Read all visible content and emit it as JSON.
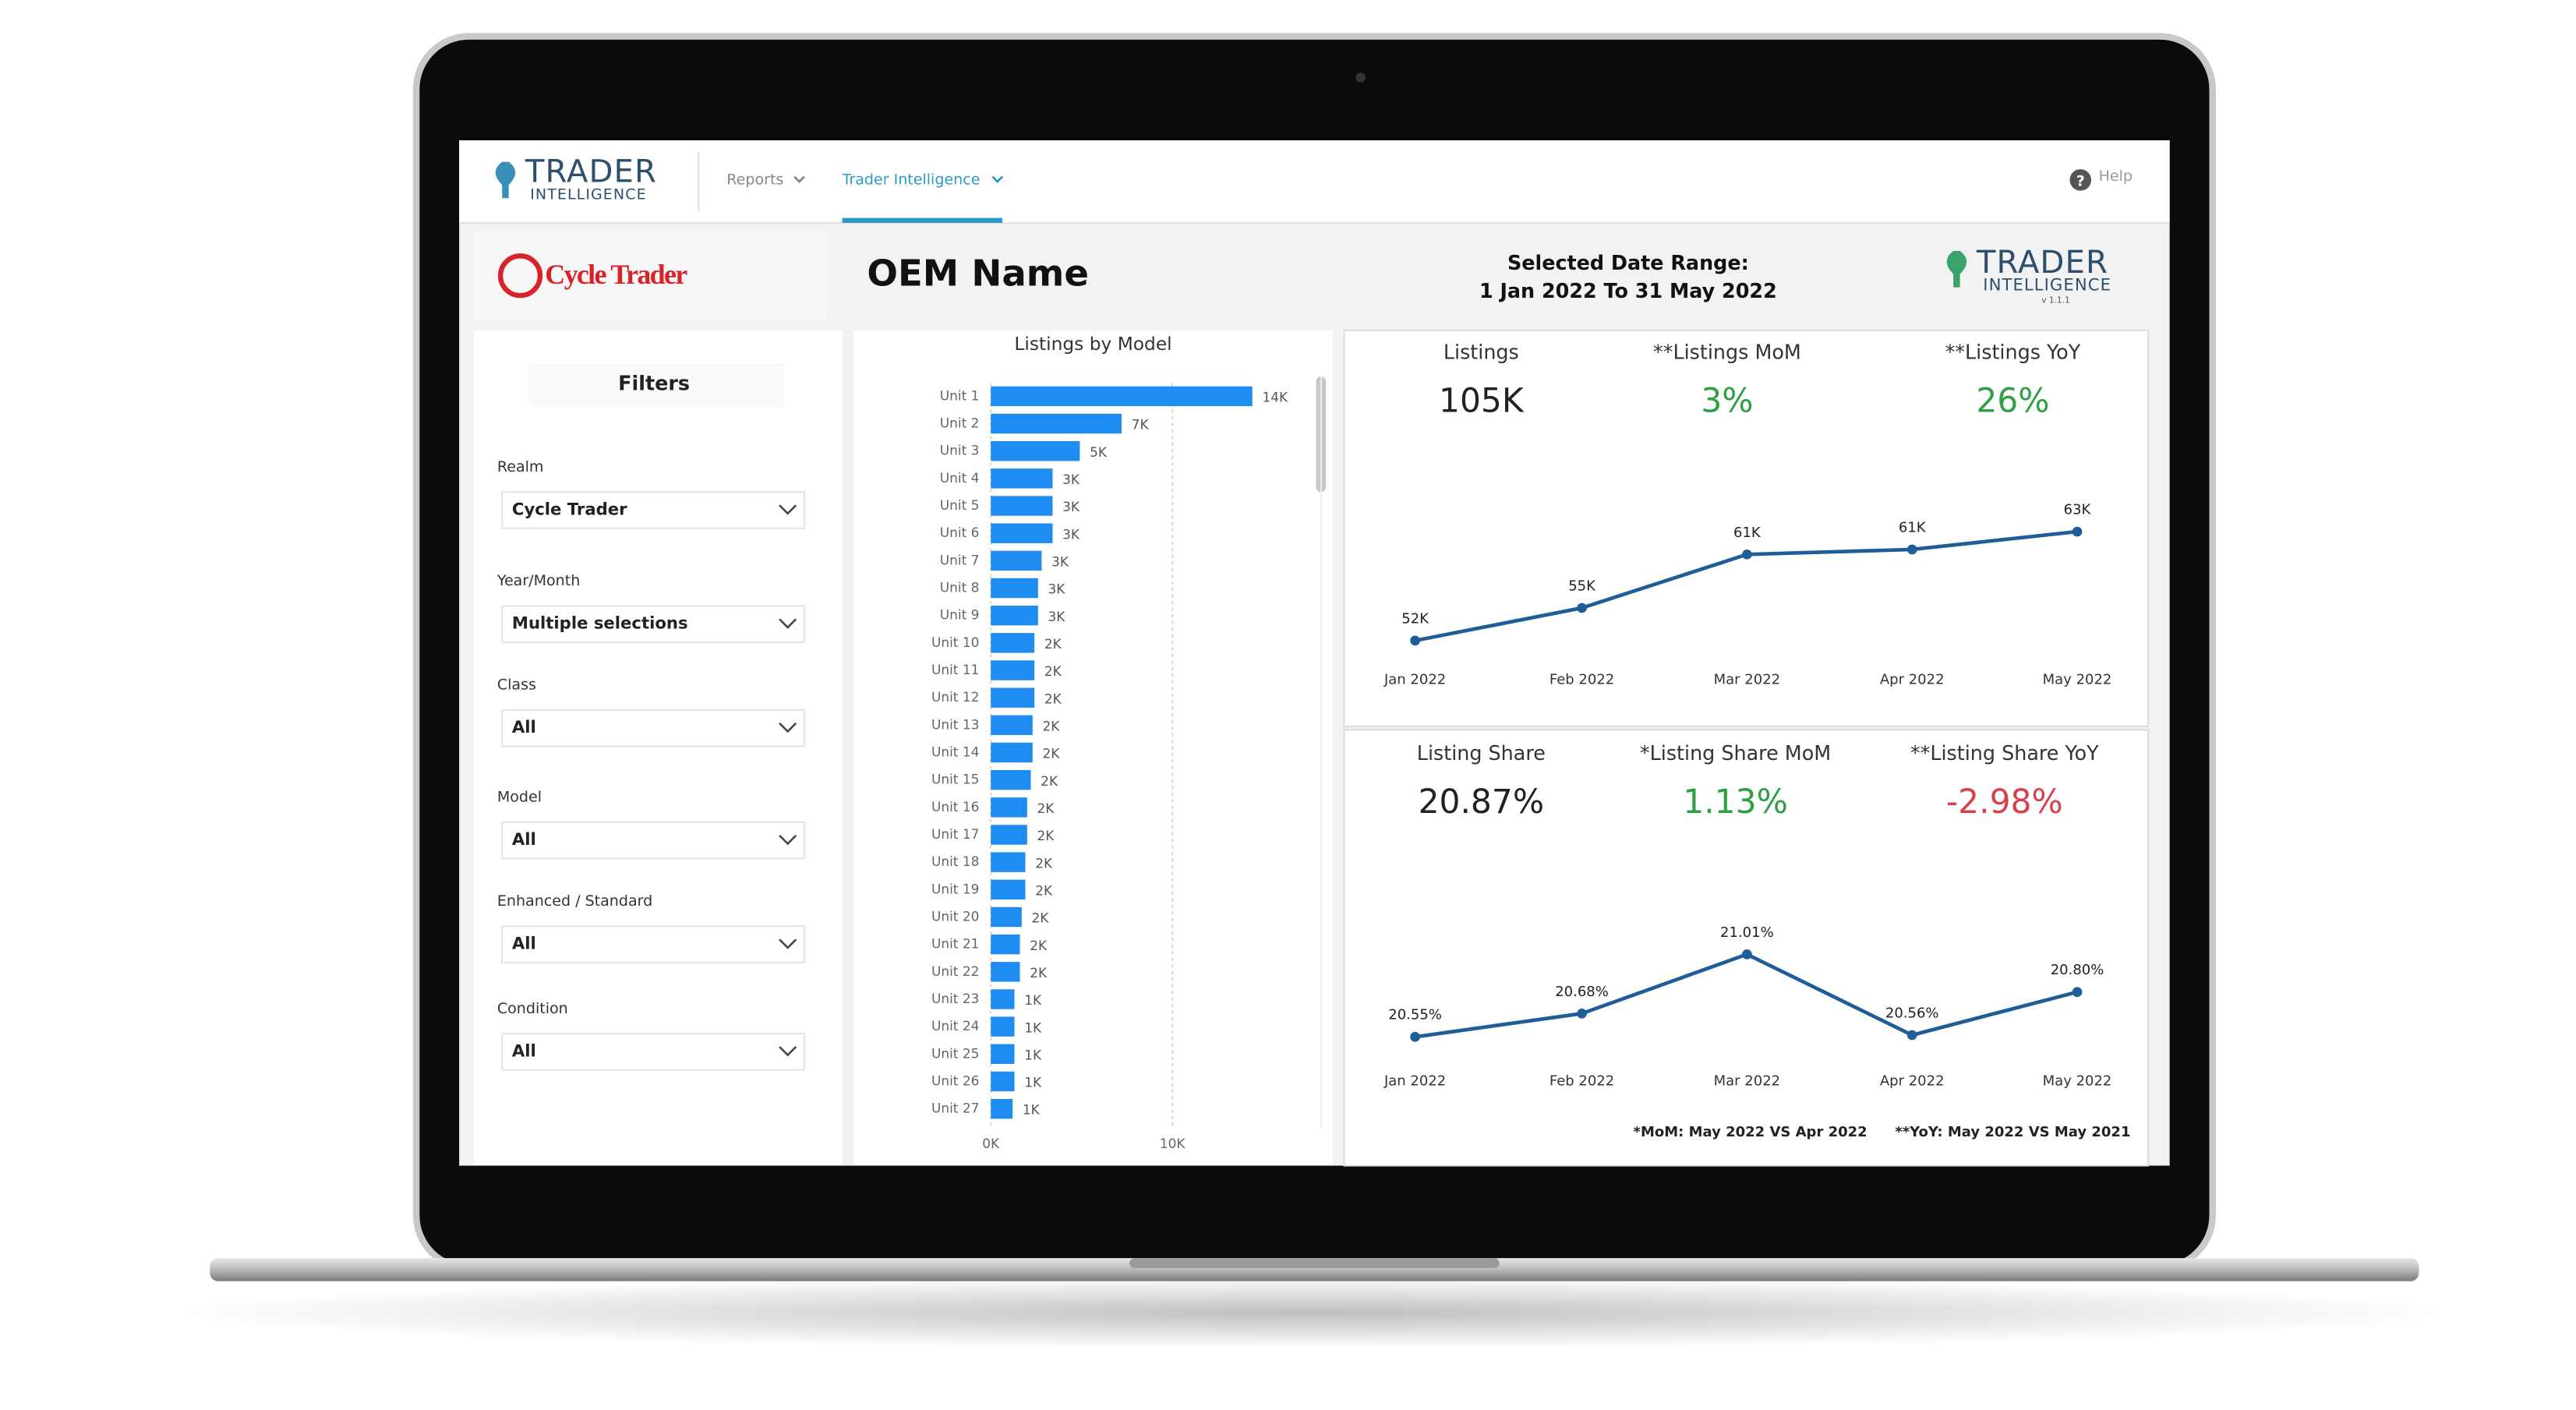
{
  "nav": {
    "logo_line1": "TRADER",
    "logo_line2": "INTELLIGENCE",
    "items": [
      "Reports",
      "Trader Intelligence"
    ],
    "help": "Help"
  },
  "header": {
    "brand": "Cycle Trader",
    "title": "OEM Name",
    "date_label": "Selected Date Range:",
    "date_value": "1 Jan 2022 To 31 May 2022",
    "logo_line1": "TRADER",
    "logo_line2": "INTELLIGENCE",
    "version": "v 1.1.1"
  },
  "filters": {
    "title": "Filters",
    "items": [
      {
        "label": "Realm",
        "value": "Cycle Trader"
      },
      {
        "label": "Year/Month",
        "value": "Multiple selections"
      },
      {
        "label": "Class",
        "value": "All"
      },
      {
        "label": "Model",
        "value": "All"
      },
      {
        "label": "Enhanced / Standard",
        "value": "All"
      },
      {
        "label": "Condition",
        "value": "All"
      }
    ]
  },
  "listings_by_model": {
    "type": "bar",
    "orientation": "horizontal",
    "title": "Listings by Model",
    "color": "#1e8cf0",
    "categories": [
      "Unit 1",
      "Unit 2",
      "Unit 3",
      "Unit 4",
      "Unit 5",
      "Unit 6",
      "Unit 7",
      "Unit 8",
      "Unit 9",
      "Unit 10",
      "Unit 11",
      "Unit 12",
      "Unit 13",
      "Unit 14",
      "Unit 15",
      "Unit 16",
      "Unit 17",
      "Unit 18",
      "Unit 19",
      "Unit 20",
      "Unit 21",
      "Unit 22",
      "Unit 23",
      "Unit 24",
      "Unit 25",
      "Unit 26",
      "Unit 27"
    ],
    "values": [
      14400,
      7200,
      4900,
      3400,
      3400,
      3400,
      2800,
      2600,
      2600,
      2400,
      2400,
      2400,
      2300,
      2300,
      2200,
      2000,
      2000,
      1900,
      1900,
      1700,
      1600,
      1600,
      1300,
      1300,
      1300,
      1300,
      1200
    ],
    "value_labels": [
      "14K",
      "7K",
      "5K",
      "3K",
      "3K",
      "3K",
      "3K",
      "3K",
      "3K",
      "2K",
      "2K",
      "2K",
      "2K",
      "2K",
      "2K",
      "2K",
      "2K",
      "2K",
      "2K",
      "2K",
      "2K",
      "2K",
      "1K",
      "1K",
      "1K",
      "1K",
      "1K"
    ],
    "xlim": [
      0,
      18000
    ],
    "xticks": [
      {
        "value": 0,
        "label": "0K"
      },
      {
        "value": 10000,
        "label": "10K"
      }
    ],
    "grid": true
  },
  "listings_panel": {
    "kpis": [
      {
        "label": "Listings",
        "value": "105K",
        "color": "#222222"
      },
      {
        "label": "**Listings MoM",
        "value": "3%",
        "color": "#2ea043"
      },
      {
        "label": "**Listings YoY",
        "value": "26%",
        "color": "#2ea043"
      }
    ],
    "chart": {
      "type": "line",
      "color": "#1f5d99",
      "x": [
        "Jan 2022",
        "Feb 2022",
        "Mar 2022",
        "Apr 2022",
        "May 2022"
      ],
      "values": [
        52000,
        55300,
        60700,
        61200,
        63000
      ],
      "value_labels": [
        "52K",
        "55K",
        "61K",
        "61K",
        "63K"
      ]
    }
  },
  "share_panel": {
    "kpis": [
      {
        "label": "Listing Share",
        "value": "20.87%",
        "color": "#222222"
      },
      {
        "label": "*Listing Share MoM",
        "value": "1.13%",
        "color": "#2ea043"
      },
      {
        "label": "**Listing Share YoY",
        "value": "-2.98%",
        "color": "#d8404c"
      }
    ],
    "chart": {
      "type": "line",
      "color": "#1f5d99",
      "x": [
        "Jan 2022",
        "Feb 2022",
        "Mar 2022",
        "Apr 2022",
        "May 2022"
      ],
      "values": [
        20.55,
        20.68,
        21.01,
        20.56,
        20.8
      ],
      "value_labels": [
        "20.55%",
        "20.68%",
        "21.01%",
        "20.56%",
        "20.80%"
      ]
    },
    "footnotes": [
      "*MoM: May 2022 VS Apr 2022",
      "**YoY: May 2022 VS May 2021"
    ]
  }
}
